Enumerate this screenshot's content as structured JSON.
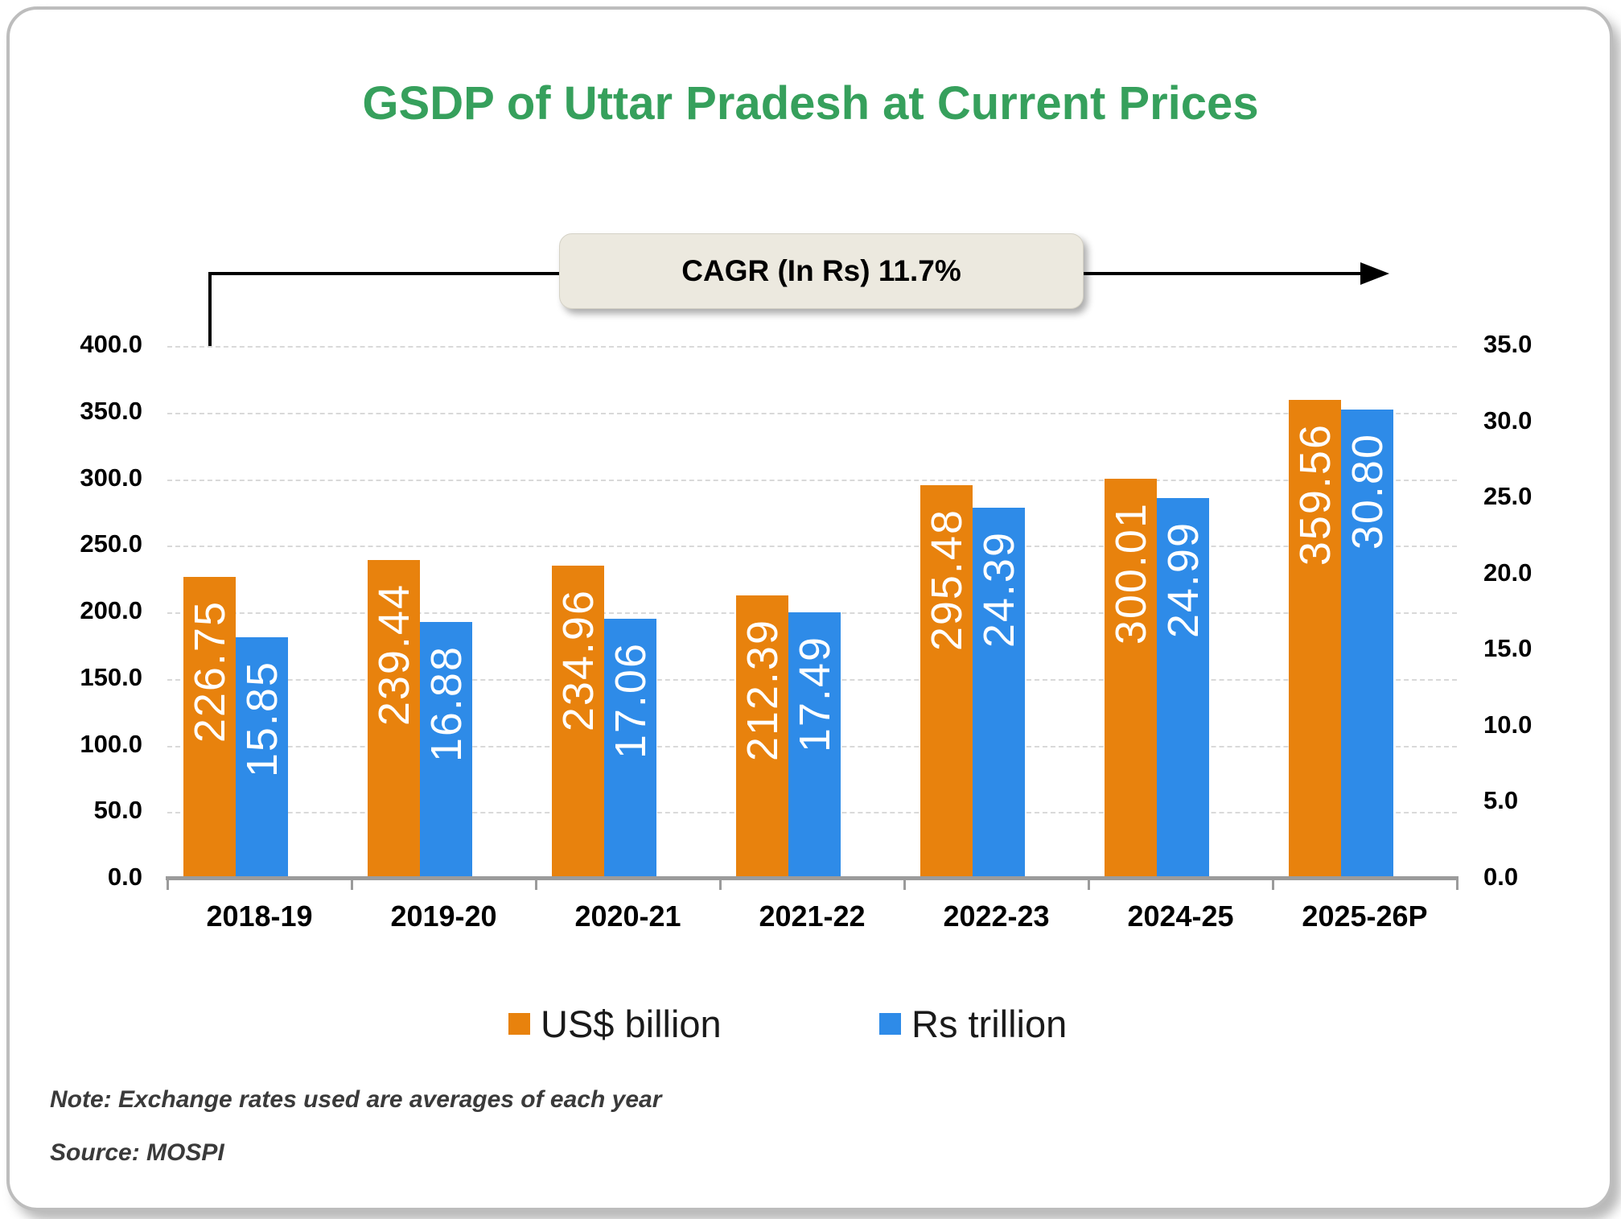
{
  "title": "GSDP of Uttar Pradesh at Current Prices",
  "annotation": {
    "label": "CAGR (In Rs) 11.7%"
  },
  "chart_data": {
    "type": "bar",
    "title": "GSDP of Uttar Pradesh at Current Prices",
    "categories": [
      "2018-19",
      "2019-20",
      "2020-21",
      "2021-22",
      "2022-23",
      "2024-25",
      "2025-26P"
    ],
    "series": [
      {
        "name": "US$ billion",
        "axis": "left",
        "color": "#E8820D",
        "values": [
          226.75,
          239.44,
          234.96,
          212.39,
          295.48,
          300.01,
          359.56
        ]
      },
      {
        "name": "Rs trillion",
        "axis": "right",
        "color": "#2E8BE8",
        "values": [
          15.85,
          16.88,
          17.06,
          17.49,
          24.39,
          24.99,
          30.8
        ]
      }
    ],
    "left_axis": {
      "min": 0,
      "max": 400,
      "step": 50,
      "ticks": [
        "0.0",
        "50.0",
        "100.0",
        "150.0",
        "200.0",
        "250.0",
        "300.0",
        "350.0",
        "400.0"
      ]
    },
    "right_axis": {
      "min": 0,
      "max": 35,
      "step": 5,
      "ticks": [
        "0.0",
        "5.0",
        "10.0",
        "15.0",
        "20.0",
        "25.0",
        "30.0",
        "35.0"
      ]
    },
    "grid": "horizontal-dashed",
    "legend_position": "bottom",
    "annotation": "CAGR (In Rs) 11.7%"
  },
  "legend": {
    "items": [
      {
        "label": "US$ billion",
        "color": "#E8820D"
      },
      {
        "label": "Rs trillion",
        "color": "#2E8BE8"
      }
    ]
  },
  "footer": {
    "note": "Note: Exchange rates used are averages of each year",
    "source": "Source: MOSPI"
  },
  "colors": {
    "title_green": "#36A05C",
    "orange": "#E8820D",
    "blue": "#2E8BE8",
    "annotation_bg": "#ECE9DF",
    "axis_gray": "#9B9B9B",
    "grid_gray": "#D9D9D9"
  }
}
